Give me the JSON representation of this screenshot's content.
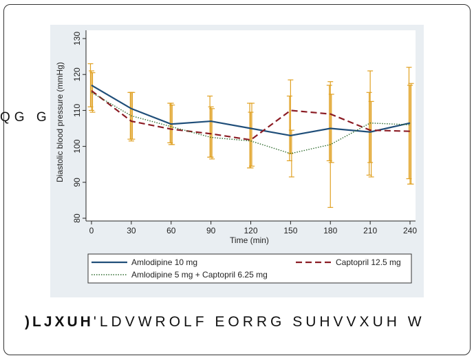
{
  "side_text": "QG G",
  "caption": {
    "bold": ")LJXUH",
    "rest": "'LDVWROLF EORRG SUHVVXUH W"
  },
  "colors": {
    "amlodipine": "#1f4e79",
    "captopril": "#8b1c24",
    "combo": "#2e6b2e",
    "error_bars": "#e0a020",
    "panel": "#e9eef2"
  },
  "chart_data": {
    "type": "line",
    "xlabel": "Time (min)",
    "ylabel": "Diastolic blood pressure (mmHg)",
    "x": [
      0,
      30,
      60,
      90,
      120,
      150,
      180,
      210,
      240
    ],
    "xlim": [
      0,
      240
    ],
    "ylim": [
      80,
      130
    ],
    "xticks": [
      0,
      30,
      60,
      90,
      120,
      150,
      180,
      210,
      240
    ],
    "yticks": [
      80,
      90,
      100,
      110,
      120,
      130
    ],
    "grid": false,
    "legend_position": "bottom",
    "series": [
      {
        "name": "Amlodipine 10 mg",
        "style": "solid",
        "values": [
          117,
          110.5,
          106.2,
          107,
          105,
          103,
          105,
          104,
          106.5
        ],
        "err_low": [
          111,
          102,
          101,
          97,
          94,
          96,
          96,
          92,
          91
        ],
        "err_high": [
          123,
          115,
          112,
          114,
          112,
          114,
          117,
          115,
          122
        ]
      },
      {
        "name": "Captopril 12.5 mg",
        "style": "dashed",
        "values": [
          115.5,
          107,
          104.8,
          103.5,
          101.8,
          110,
          109,
          104.5,
          104.2
        ],
        "err_low": [
          110,
          101.5,
          100.5,
          97,
          94,
          98,
          83,
          95.5,
          89.5
        ],
        "err_high": [
          121,
          115,
          112,
          111,
          109.5,
          118.5,
          118,
          121,
          117
        ]
      },
      {
        "name": "Amlodipine 5 mg + Captopril 6.25 mg",
        "style": "dotted",
        "values": [
          115,
          108.5,
          105.5,
          102.5,
          101.5,
          98,
          100.5,
          106.5,
          106
        ],
        "err_low": [
          109.5,
          102,
          100.5,
          96.5,
          94.5,
          91.5,
          95.5,
          91.5,
          89.5
        ],
        "err_high": [
          120.5,
          115,
          111.5,
          110.5,
          112,
          104.5,
          114.5,
          112.5,
          117.5
        ]
      }
    ]
  }
}
